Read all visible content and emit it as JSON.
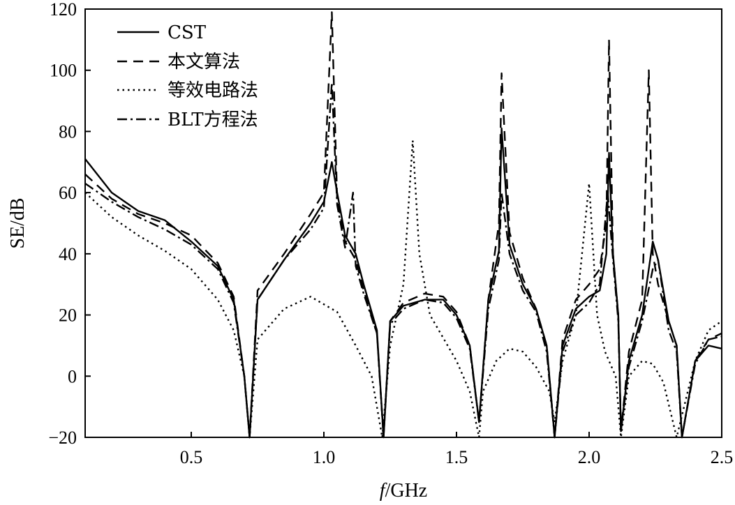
{
  "chart_data": {
    "type": "line",
    "xlabel_italic": "f",
    "xlabel_rest": "/GHz",
    "ylabel": "SE/dB",
    "xlim": [
      0.1,
      2.5
    ],
    "ylim": [
      -20,
      120
    ],
    "xticks": [
      0.5,
      1.0,
      1.5,
      2.0,
      2.5
    ],
    "xtick_labels": [
      "0.5",
      "1.0",
      "1.5",
      "2.0",
      "2.5"
    ],
    "yticks": [
      -20,
      0,
      20,
      40,
      60,
      80,
      100,
      120
    ],
    "ytick_labels": [
      "−20",
      "0",
      "20",
      "40",
      "60",
      "80",
      "100",
      "120"
    ],
    "grid": false,
    "legend_position": "top-left",
    "series": [
      {
        "name": "CST",
        "dash": "solid",
        "x": [
          0.1,
          0.2,
          0.3,
          0.4,
          0.5,
          0.6,
          0.66,
          0.7,
          0.72,
          0.75,
          0.85,
          0.95,
          1.0,
          1.03,
          1.05,
          1.08,
          1.12,
          1.15,
          1.2,
          1.225,
          1.25,
          1.3,
          1.38,
          1.45,
          1.5,
          1.55,
          1.585,
          1.62,
          1.66,
          1.67,
          1.7,
          1.75,
          1.8,
          1.84,
          1.87,
          1.9,
          1.95,
          2.0,
          2.04,
          2.065,
          2.075,
          2.09,
          2.11,
          2.12,
          2.15,
          2.2,
          2.24,
          2.26,
          2.3,
          2.33,
          2.35,
          2.4,
          2.45,
          2.5
        ],
        "y": [
          71,
          60,
          54,
          51,
          44,
          36,
          25,
          0,
          -20,
          25,
          38,
          50,
          57,
          70,
          60,
          46,
          40,
          30,
          15,
          -20,
          18,
          23,
          25,
          25,
          20,
          10,
          -15,
          25,
          41,
          81,
          43,
          30,
          22,
          10,
          -20,
          10,
          22,
          26,
          28,
          40,
          73,
          40,
          20,
          -18,
          5,
          20,
          44,
          38,
          18,
          10,
          -20,
          5,
          10,
          9
        ]
      },
      {
        "name": "本文算法",
        "dash": "dashed",
        "x": [
          0.1,
          0.2,
          0.3,
          0.4,
          0.5,
          0.6,
          0.66,
          0.7,
          0.72,
          0.75,
          0.85,
          0.95,
          1.0,
          1.03,
          1.05,
          1.08,
          1.12,
          1.15,
          1.2,
          1.225,
          1.25,
          1.3,
          1.38,
          1.45,
          1.5,
          1.55,
          1.585,
          1.62,
          1.66,
          1.67,
          1.7,
          1.75,
          1.8,
          1.84,
          1.87,
          1.9,
          1.95,
          2.0,
          2.04,
          2.065,
          2.075,
          2.09,
          2.11,
          2.12,
          2.15,
          2.2,
          2.225,
          2.24,
          2.26,
          2.3,
          2.33,
          2.35,
          2.4,
          2.45,
          2.5
        ],
        "y": [
          66,
          58,
          53,
          50,
          46,
          37,
          26,
          0,
          -20,
          28,
          40,
          53,
          60,
          119,
          58,
          44,
          38,
          28,
          14,
          -20,
          18,
          24,
          27,
          26,
          21,
          10,
          -15,
          25,
          50,
          99,
          47,
          32,
          22,
          10,
          -20,
          12,
          25,
          30,
          35,
          50,
          110,
          40,
          20,
          -18,
          8,
          25,
          100,
          40,
          30,
          18,
          10,
          -20,
          5,
          12,
          14
        ]
      },
      {
        "name": "等效电路法",
        "dash": "dotted",
        "x": [
          0.1,
          0.2,
          0.3,
          0.4,
          0.5,
          0.6,
          0.66,
          0.7,
          0.72,
          0.75,
          0.85,
          0.95,
          1.05,
          1.12,
          1.18,
          1.22,
          1.25,
          1.3,
          1.335,
          1.36,
          1.4,
          1.5,
          1.55,
          1.585,
          1.6,
          1.65,
          1.7,
          1.75,
          1.8,
          1.85,
          1.87,
          1.9,
          1.95,
          2.0,
          2.03,
          2.06,
          2.1,
          2.12,
          2.15,
          2.2,
          2.24,
          2.28,
          2.33,
          2.4,
          2.45,
          2.5
        ],
        "y": [
          60,
          52,
          46,
          41,
          35,
          25,
          15,
          0,
          -20,
          12,
          22,
          26,
          21,
          10,
          0,
          -20,
          10,
          30,
          77,
          40,
          20,
          5,
          -5,
          -20,
          -5,
          5,
          9,
          8,
          3,
          -5,
          -15,
          5,
          20,
          63,
          20,
          8,
          0,
          -20,
          0,
          5,
          4,
          -2,
          -20,
          5,
          15,
          18
        ]
      },
      {
        "name": "BLT方程法",
        "dash": "dashdot",
        "x": [
          0.1,
          0.2,
          0.3,
          0.4,
          0.5,
          0.6,
          0.66,
          0.7,
          0.72,
          0.75,
          0.85,
          0.95,
          1.0,
          1.03,
          1.05,
          1.08,
          1.11,
          1.12,
          1.15,
          1.2,
          1.225,
          1.25,
          1.3,
          1.38,
          1.45,
          1.5,
          1.55,
          1.585,
          1.62,
          1.66,
          1.67,
          1.7,
          1.75,
          1.8,
          1.84,
          1.87,
          1.9,
          1.95,
          2.0,
          2.04,
          2.07,
          2.09,
          2.11,
          2.12,
          2.15,
          2.2,
          2.24,
          2.26,
          2.3,
          2.33,
          2.35,
          2.4,
          2.45,
          2.5
        ],
        "y": [
          63,
          57,
          52,
          48,
          43,
          35,
          24,
          0,
          -20,
          25,
          38,
          48,
          55,
          96,
          56,
          42,
          60,
          36,
          27,
          14,
          -20,
          17,
          22,
          25,
          24,
          19,
          9,
          -15,
          22,
          38,
          60,
          40,
          28,
          21,
          8,
          -20,
          8,
          20,
          24,
          30,
          60,
          38,
          18,
          -18,
          3,
          18,
          35,
          38,
          15,
          8,
          -20,
          4,
          12,
          13
        ]
      }
    ]
  }
}
